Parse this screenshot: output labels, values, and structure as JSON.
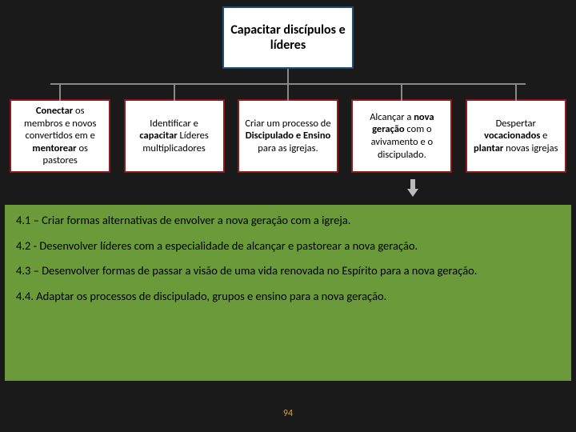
{
  "diagram": {
    "root": {
      "text": "Capacitar discípulos e líderes",
      "border_color": "#1f4e7a",
      "bg_color": "#ffffff",
      "font_size": 16,
      "font_weight": "bold"
    },
    "children": [
      {
        "html": "<b>Conectar</b> os membros e novos convertidos em e <b>mentorear</b> os pastores"
      },
      {
        "html": "Identificar e <b>capacitar</b> Líderes multiplicadores"
      },
      {
        "html": "Criar um processo de <b>Discipulado e Ensino</b> para as igrejas."
      },
      {
        "html": "Alcançar a <b>nova geração</b> com o avivamento e o discipulado."
      },
      {
        "html": "Despertar <b>vocacionados</b> e <b>plantar</b> novas igrejas"
      }
    ],
    "child_border_color": "#8b1a1a",
    "child_bg_color": "#ffffff",
    "child_font_size": 12.5,
    "connector_color": "#888888"
  },
  "panel": {
    "bg_color": "#6a9a3a",
    "text_color": "#000000",
    "font_size": 14.5,
    "items": [
      "4.1 – Criar formas alternativas de envolver a nova geração com a igreja.",
      "4.2 - Desenvolver líderes com a especialidade de alcançar e pastorear a nova geração.",
      "4.3 – Desenvolver formas de passar a visão de uma vida renovada no Espírito para a nova geração.",
      "4.4. Adaptar os processos de discipulado, grupos e ensino para a nova geração."
    ]
  },
  "arrow": {
    "color": "#bbbbbb"
  },
  "page_number": "94",
  "page_number_color": "#d4a23a",
  "background_color": "#1a1a1a"
}
